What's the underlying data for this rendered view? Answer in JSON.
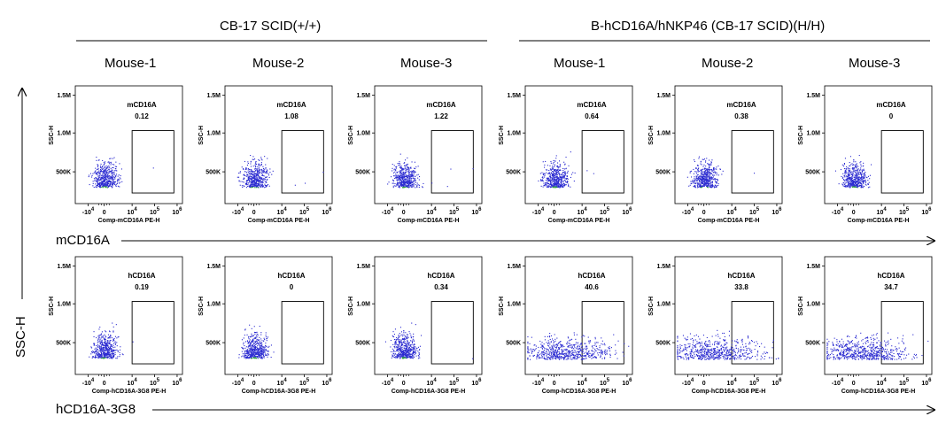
{
  "figure": {
    "y_axis_label": "SSC-H",
    "row_axis_labels": [
      "mCD16A",
      "hCD16A-3G8"
    ]
  },
  "groups": [
    {
      "title": "CB-17 SCID(+/+)"
    },
    {
      "title": "B-hCD16A/hNKP46 (CB-17 SCID)(H/H)"
    }
  ],
  "mouse_labels": [
    "Mouse-1",
    "Mouse-2",
    "Mouse-3",
    "Mouse-1",
    "Mouse-2",
    "Mouse-3"
  ],
  "colors": {
    "dots": "#2a2ad0",
    "dense_core": "#2e9e3a",
    "hot_core": "#d8d020",
    "gate": "#000000"
  },
  "chart_data": [
    {
      "type": "scatter",
      "title": "",
      "xlabel": "Comp-mCD16A PE-H",
      "ylabel": "SSC-H",
      "x_scale": "biexponential",
      "x_ticks": [
        "-10^4",
        "0",
        "10^4",
        "10^5",
        "10^6"
      ],
      "y_ticks": [
        "500K",
        "1.0M",
        "1.5M"
      ],
      "gate_name": "mCD16A",
      "panels": [
        {
          "group": "CB-17 SCID(+/+)",
          "mouse": "Mouse-1",
          "gate_percent": "0.12"
        },
        {
          "group": "CB-17 SCID(+/+)",
          "mouse": "Mouse-2",
          "gate_percent": "1.08"
        },
        {
          "group": "CB-17 SCID(+/+)",
          "mouse": "Mouse-3",
          "gate_percent": "1.22"
        },
        {
          "group": "B-hCD16A/hNKP46 (CB-17 SCID)(H/H)",
          "mouse": "Mouse-1",
          "gate_percent": "0.64"
        },
        {
          "group": "B-hCD16A/hNKP46 (CB-17 SCID)(H/H)",
          "mouse": "Mouse-2",
          "gate_percent": "0.38"
        },
        {
          "group": "B-hCD16A/hNKP46 (CB-17 SCID)(H/H)",
          "mouse": "Mouse-3",
          "gate_percent": "0"
        }
      ]
    },
    {
      "type": "scatter",
      "title": "",
      "xlabel": "Comp-hCD16A-3G8 PE-H",
      "ylabel": "SSC-H",
      "x_scale": "biexponential",
      "x_ticks": [
        "-10^4",
        "0",
        "10^4",
        "10^5",
        "10^6"
      ],
      "y_ticks": [
        "500K",
        "1.0M",
        "1.5M"
      ],
      "gate_name": "hCD16A",
      "panels": [
        {
          "group": "CB-17 SCID(+/+)",
          "mouse": "Mouse-1",
          "gate_percent": "0.19"
        },
        {
          "group": "CB-17 SCID(+/+)",
          "mouse": "Mouse-2",
          "gate_percent": "0"
        },
        {
          "group": "CB-17 SCID(+/+)",
          "mouse": "Mouse-3",
          "gate_percent": "0.34"
        },
        {
          "group": "B-hCD16A/hNKP46 (CB-17 SCID)(H/H)",
          "mouse": "Mouse-1",
          "gate_percent": "40.6"
        },
        {
          "group": "B-hCD16A/hNKP46 (CB-17 SCID)(H/H)",
          "mouse": "Mouse-2",
          "gate_percent": "33.8"
        },
        {
          "group": "B-hCD16A/hNKP46 (CB-17 SCID)(H/H)",
          "mouse": "Mouse-3",
          "gate_percent": "34.7"
        }
      ]
    }
  ]
}
